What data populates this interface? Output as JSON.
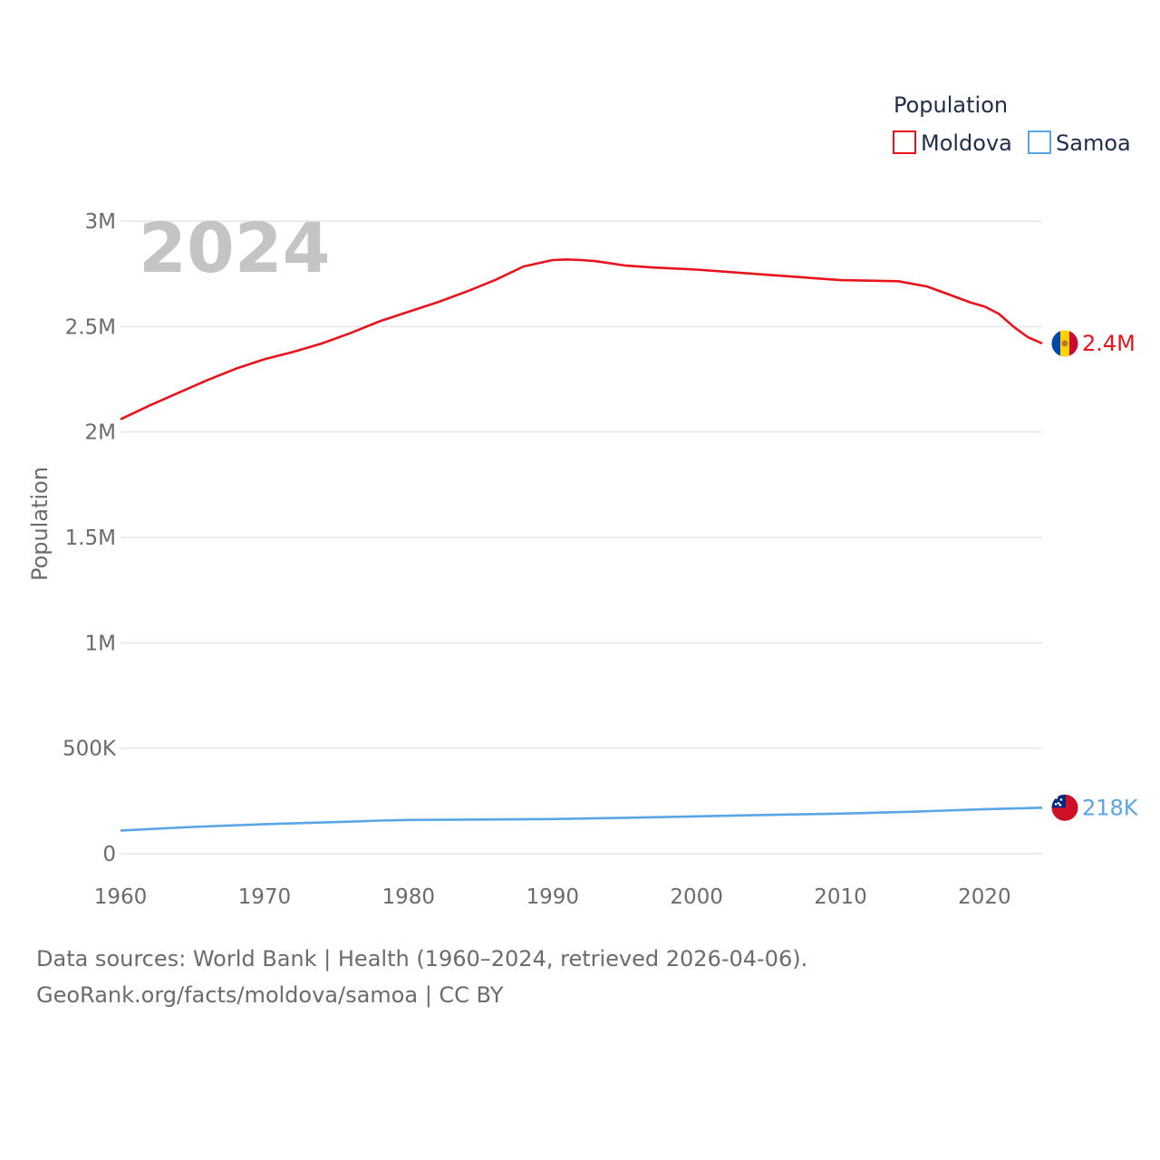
{
  "chart_data": {
    "type": "line",
    "watermark_year": "2024",
    "ylabel": "Population",
    "xlabel": "",
    "xlim": [
      1960,
      2024
    ],
    "ylim": [
      0,
      3000000
    ],
    "x_ticks": [
      {
        "value": 1960,
        "label": "1960"
      },
      {
        "value": 1970,
        "label": "1970"
      },
      {
        "value": 1980,
        "label": "1980"
      },
      {
        "value": 1990,
        "label": "1990"
      },
      {
        "value": 2000,
        "label": "2000"
      },
      {
        "value": 2010,
        "label": "2010"
      },
      {
        "value": 2020,
        "label": "2020"
      }
    ],
    "y_ticks": [
      {
        "value": 0,
        "label": "0"
      },
      {
        "value": 500000,
        "label": "500K"
      },
      {
        "value": 1000000,
        "label": "1M"
      },
      {
        "value": 1500000,
        "label": "1.5M"
      },
      {
        "value": 2000000,
        "label": "2M"
      },
      {
        "value": 2500000,
        "label": "2.5M"
      },
      {
        "value": 3000000,
        "label": "3M"
      }
    ],
    "legend": {
      "title": "Population",
      "position": "top-right"
    },
    "series": [
      {
        "name": "Moldova",
        "color": "#e8131b",
        "end_label": "2.4M",
        "flag_icon": "moldova-flag-icon",
        "points": [
          [
            1960,
            2060000
          ],
          [
            1962,
            2125000
          ],
          [
            1964,
            2185000
          ],
          [
            1966,
            2245000
          ],
          [
            1968,
            2300000
          ],
          [
            1970,
            2345000
          ],
          [
            1972,
            2380000
          ],
          [
            1974,
            2420000
          ],
          [
            1976,
            2470000
          ],
          [
            1978,
            2525000
          ],
          [
            1980,
            2570000
          ],
          [
            1982,
            2615000
          ],
          [
            1984,
            2665000
          ],
          [
            1986,
            2720000
          ],
          [
            1988,
            2785000
          ],
          [
            1989,
            2800000
          ],
          [
            1990,
            2815000
          ],
          [
            1991,
            2818000
          ],
          [
            1992,
            2815000
          ],
          [
            1993,
            2810000
          ],
          [
            1995,
            2790000
          ],
          [
            1997,
            2780000
          ],
          [
            2000,
            2770000
          ],
          [
            2005,
            2745000
          ],
          [
            2010,
            2720000
          ],
          [
            2014,
            2715000
          ],
          [
            2016,
            2690000
          ],
          [
            2017,
            2665000
          ],
          [
            2019,
            2615000
          ],
          [
            2020,
            2595000
          ],
          [
            2021,
            2560000
          ],
          [
            2022,
            2500000
          ],
          [
            2023,
            2450000
          ],
          [
            2024,
            2420000
          ]
        ]
      },
      {
        "name": "Samoa",
        "color": "#5aa5e6",
        "end_label": "218K",
        "flag_icon": "samoa-flag-icon",
        "points": [
          [
            1960,
            110000
          ],
          [
            1965,
            127000
          ],
          [
            1970,
            140000
          ],
          [
            1975,
            150000
          ],
          [
            1978,
            157000
          ],
          [
            1980,
            160000
          ],
          [
            1985,
            162000
          ],
          [
            1990,
            164000
          ],
          [
            1995,
            170000
          ],
          [
            2000,
            177000
          ],
          [
            2005,
            184000
          ],
          [
            2010,
            190000
          ],
          [
            2015,
            199000
          ],
          [
            2020,
            211000
          ],
          [
            2024,
            218000
          ]
        ]
      }
    ],
    "source_line_1": "Data sources: World Bank | Health (1960–2024, retrieved 2026-04-06).",
    "source_line_2": "GeoRank.org/facts/moldova/samoa | CC BY"
  }
}
